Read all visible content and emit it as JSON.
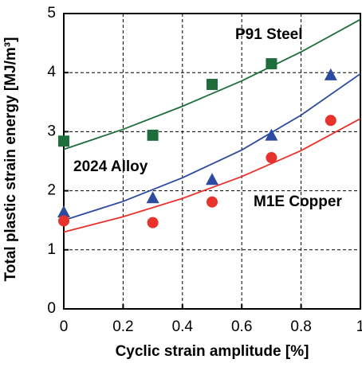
{
  "chart_data": {
    "type": "scatter",
    "x_label": "Cyclic strain amplitude [%]",
    "y_label": "Total plastic strain energy [MJ/m³]",
    "xlim": [
      0,
      1
    ],
    "ylim": [
      0,
      5
    ],
    "xticks": [
      0,
      0.2,
      0.4,
      0.6,
      0.8,
      1
    ],
    "yticks": [
      0,
      1,
      2,
      3,
      4,
      5
    ],
    "grid": true,
    "series": [
      {
        "name": "P91 Steel",
        "color": "#1e6e3c",
        "marker": "square",
        "x": [
          0,
          0.3,
          0.5,
          0.7
        ],
        "values": [
          2.84,
          2.94,
          3.8,
          4.15
        ],
        "fit": {
          "x": [
            0,
            0.2,
            0.4,
            0.6,
            0.8,
            1
          ],
          "values": [
            2.7,
            3.04,
            3.43,
            3.86,
            4.35,
            4.9
          ]
        }
      },
      {
        "name": "2024 Alloy",
        "color": "#2b4aa0",
        "marker": "triangle",
        "x": [
          0,
          0.3,
          0.5,
          0.7,
          0.9
        ],
        "values": [
          1.63,
          1.87,
          2.18,
          2.93,
          3.95
        ],
        "fit": {
          "x": [
            0,
            0.2,
            0.4,
            0.6,
            0.8,
            1
          ],
          "values": [
            1.5,
            1.82,
            2.22,
            2.69,
            3.28,
            3.98
          ]
        }
      },
      {
        "name": "M1E Copper",
        "color": "#e8322c",
        "marker": "circle",
        "x": [
          0,
          0.3,
          0.5,
          0.7,
          0.9
        ],
        "values": [
          1.49,
          1.46,
          1.81,
          2.56,
          3.19
        ],
        "fit": {
          "x": [
            0,
            0.2,
            0.4,
            0.6,
            0.8,
            1
          ],
          "values": [
            1.3,
            1.56,
            1.87,
            2.24,
            2.68,
            3.22
          ]
        }
      }
    ]
  }
}
